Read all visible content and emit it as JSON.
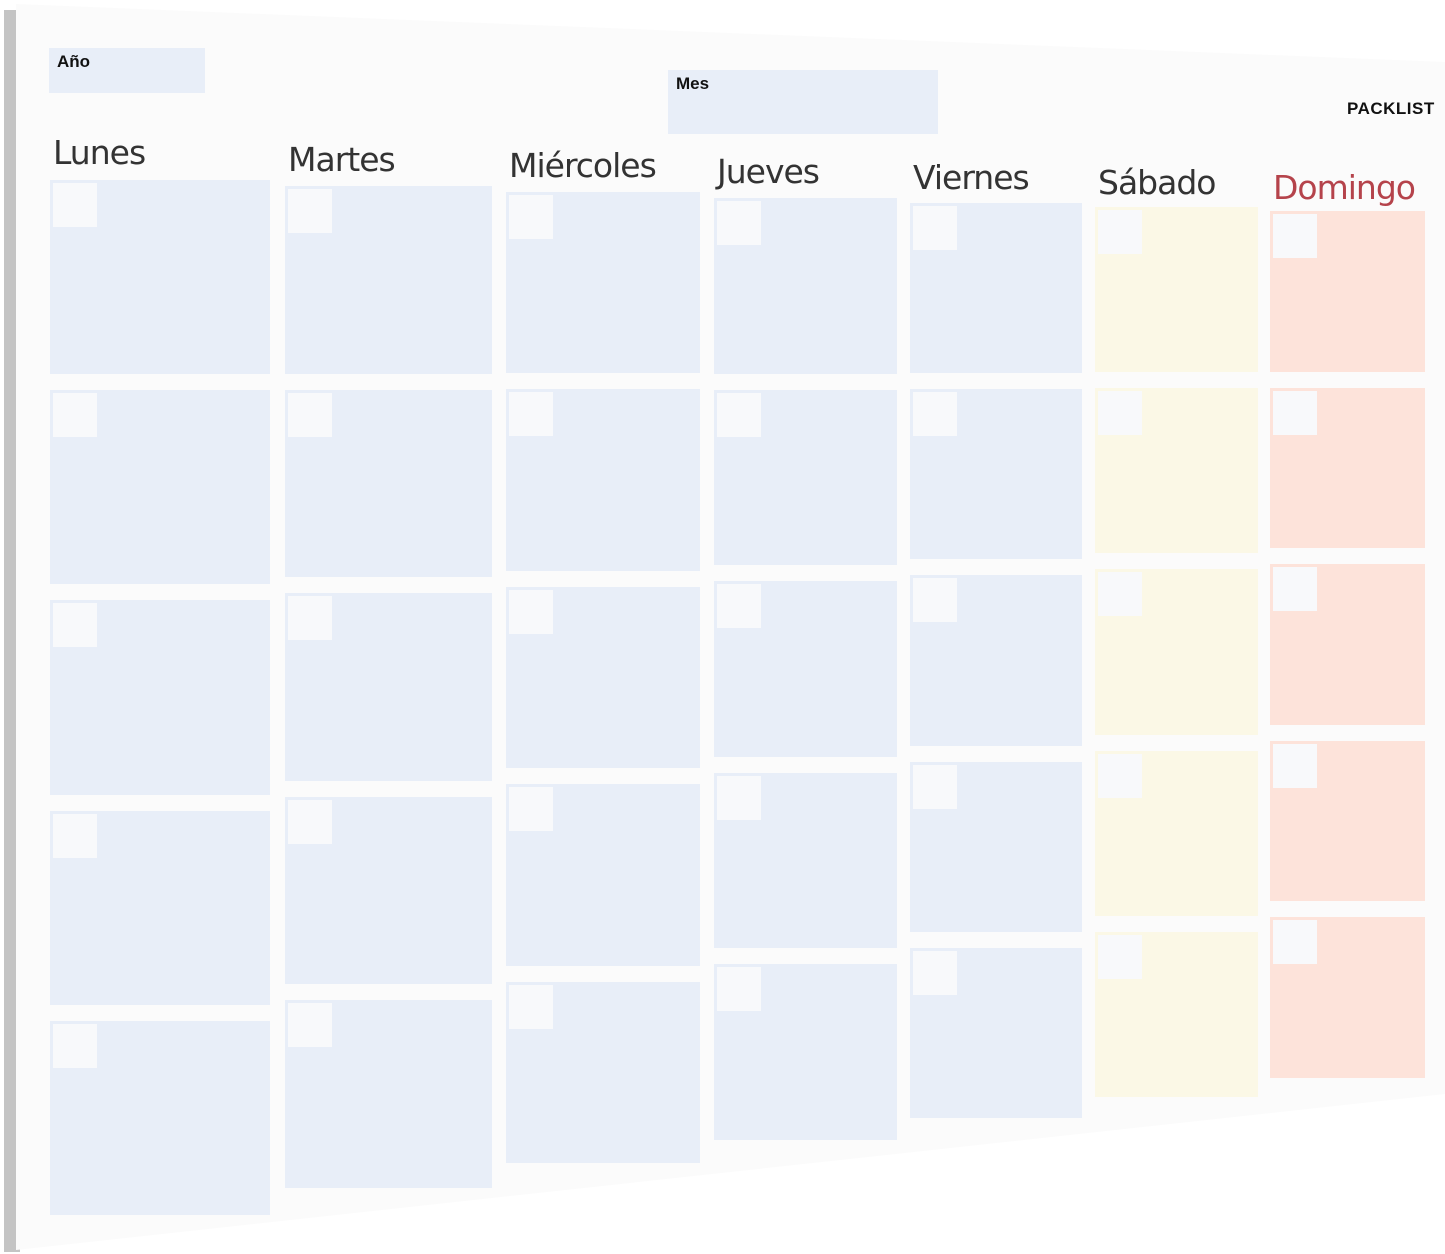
{
  "header": {
    "year_label": "Año",
    "month_label": "Mes",
    "brand": "PACKLIST"
  },
  "days": [
    {
      "label": "Lunes",
      "color": "#e8eef8",
      "text_color": "#333333"
    },
    {
      "label": "Martes",
      "color": "#e8eef8",
      "text_color": "#333333"
    },
    {
      "label": "Miércoles",
      "color": "#e8eef8",
      "text_color": "#333333"
    },
    {
      "label": "Jueves",
      "color": "#e8eef8",
      "text_color": "#333333"
    },
    {
      "label": "Viernes",
      "color": "#e8eef8",
      "text_color": "#333333"
    },
    {
      "label": "Sábado",
      "color": "#fbf8e6",
      "text_color": "#333333"
    },
    {
      "label": "Domingo",
      "color": "#fde3da",
      "text_color": "#b5434b"
    }
  ],
  "weeks": 5
}
